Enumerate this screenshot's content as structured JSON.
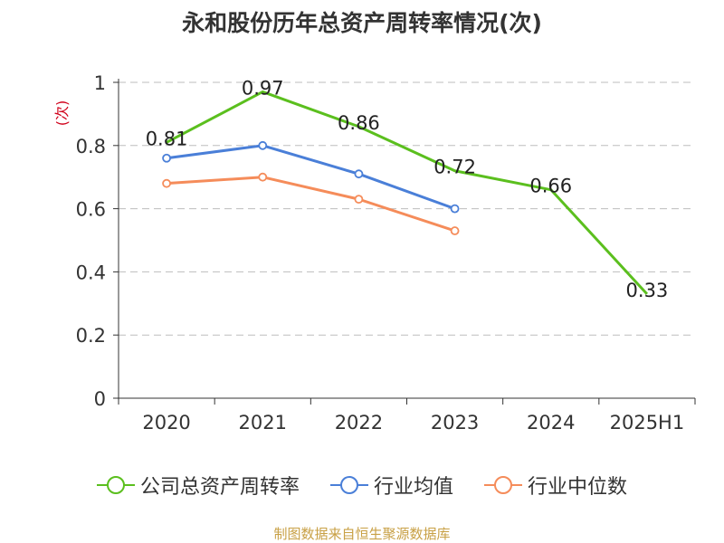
{
  "chart_data": {
    "type": "line",
    "title": "永和股份历年总资产周转率情况(次)",
    "ylabel": "(次)",
    "categories": [
      "2020",
      "2021",
      "2022",
      "2023",
      "2024",
      "2025H1"
    ],
    "ylim": [
      0,
      1
    ],
    "yticks": [
      "0",
      "0.2",
      "0.4",
      "0.6",
      "0.8",
      "1"
    ],
    "grid": true,
    "legend_position": "bottom",
    "series": [
      {
        "name": "公司总资产周转率",
        "color": "#5bbf1e",
        "values": [
          0.81,
          0.97,
          0.86,
          0.72,
          0.66,
          0.33
        ],
        "labels": [
          "0.81",
          "0.97",
          "0.86",
          "0.72",
          "0.66",
          "0.33"
        ]
      },
      {
        "name": "行业均值",
        "color": "#4a7fd8",
        "values": [
          0.76,
          0.8,
          0.71,
          0.6,
          null,
          null
        ]
      },
      {
        "name": "行业中位数",
        "color": "#f58c5a",
        "values": [
          0.68,
          0.7,
          0.63,
          0.53,
          null,
          null
        ]
      }
    ]
  },
  "source": "制图数据来自恒生聚源数据库"
}
